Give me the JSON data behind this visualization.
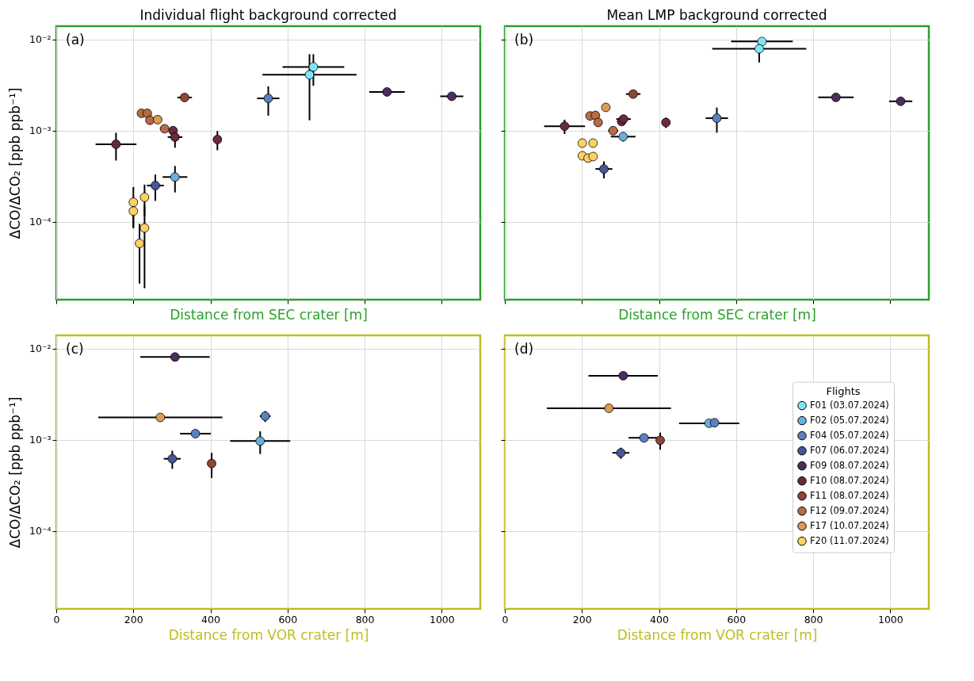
{
  "chart_data": [
    {
      "type": "scatter",
      "title": "Individual flight background corrected",
      "xlabel": "Distance from SEC crater [m]",
      "ylabel": "ΔCO/ΔCO₂ [ppb ppb⁻¹]",
      "annotations": [
        "(a)"
      ],
      "xlim": [
        0,
        1100
      ],
      "xticks": [
        0,
        200,
        400,
        600,
        800,
        1000
      ],
      "ylim": [
        1.4e-05,
        0.014
      ],
      "yticks": [
        {
          "value": 0.01,
          "label": "10⁻²"
        },
        {
          "value": 0.001,
          "label": "10⁻³"
        },
        {
          "value": 0.0001,
          "label": "10⁻⁴"
        }
      ],
      "log": "y",
      "grid": true,
      "marker": "circle",
      "tick_labels": "y",
      "series": [
        {
          "color": "#7fe6f8",
          "x": [
            667,
            657
          ],
          "values": [
            0.005,
            0.0041
          ],
          "errors": [
            0.0019,
            0.0028
          ],
          "xerrors": [
            80,
            122
          ]
        },
        {
          "color": "#6aaedc",
          "x": [
            308
          ],
          "values": [
            0.00031
          ],
          "errors": [
            0.0001
          ],
          "xerrors": [
            32
          ]
        },
        {
          "color": "#5b7fc0",
          "x": [
            550
          ],
          "values": [
            0.00226
          ],
          "errors": [
            0.0008
          ],
          "xerrors": [
            29
          ]
        },
        {
          "color": "#4a5596",
          "x": [
            257
          ],
          "values": [
            0.00025
          ],
          "errors": [
            8e-05
          ],
          "xerrors": [
            22
          ]
        },
        {
          "color": "#4b2e5e",
          "x": [
            858,
            1026
          ],
          "values": [
            0.00266,
            0.00238
          ],
          "xerrors": [
            46,
            30
          ]
        },
        {
          "color": "#6a2a3c",
          "x": [
            155,
            303,
            308,
            418
          ],
          "values": [
            0.00071,
            0.001,
            0.00085,
            0.0008
          ],
          "errors": [
            0.00024,
            null,
            0.0002,
            0.00019
          ],
          "xerrors": [
            53,
            null,
            19,
            null
          ]
        },
        {
          "color": "#8f4636",
          "x": [
            333
          ],
          "values": [
            0.00231
          ],
          "xerrors": [
            19
          ]
        },
        {
          "color": "#b86a45",
          "x": [
            221,
            236,
            243,
            281
          ],
          "values": [
            0.00155,
            0.00155,
            0.0013,
            0.00105
          ],
          "xerrors": [
            null,
            null,
            null,
            12
          ]
        },
        {
          "color": "#dc9a52",
          "x": [
            263
          ],
          "values": [
            0.00132
          ]
        },
        {
          "color": "#fdd063",
          "x": [
            200,
            200,
            229,
            229,
            216
          ],
          "values": [
            0.000164,
            0.000131,
            0.000186,
            8.57e-05,
            5.8e-05
          ],
          "errors": [
            7.7e-05,
            4.6e-05,
            7e-05,
            6.7e-05,
            3.7e-05
          ]
        }
      ]
    },
    {
      "type": "scatter",
      "title": "Mean LMP background corrected",
      "xlabel": "Distance from SEC crater [m]",
      "annotations": [
        "(b)"
      ],
      "xlim": [
        0,
        1100
      ],
      "xticks": [
        0,
        200,
        400,
        600,
        800,
        1000
      ],
      "ylim": [
        1.4e-05,
        0.014
      ],
      "yticks": [
        {
          "value": 0.01,
          "label": null
        },
        {
          "value": 0.001,
          "label": null
        },
        {
          "value": 0.0001,
          "label": null
        }
      ],
      "log": "y",
      "grid": true,
      "marker": "circle",
      "tick_labels": false,
      "series": [
        {
          "color": "#7fe6f8",
          "x": [
            667,
            660
          ],
          "values": [
            0.0095,
            0.0079
          ],
          "errors": [
            null,
            0.0023
          ],
          "xerrors": [
            80,
            122
          ]
        },
        {
          "color": "#6aaedc",
          "x": [
            307
          ],
          "values": [
            0.00086
          ],
          "errors": [
            0.0001
          ],
          "xerrors": [
            32
          ]
        },
        {
          "color": "#5b7fc0",
          "x": [
            550
          ],
          "values": [
            0.00137
          ],
          "errors": [
            0.00042
          ],
          "xerrors": [
            29
          ]
        },
        {
          "color": "#4a5596",
          "x": [
            257
          ],
          "values": [
            0.00038
          ],
          "errors": [
            8e-05
          ],
          "xerrors": [
            22
          ]
        },
        {
          "color": "#4b2e5e",
          "x": [
            859,
            1027
          ],
          "values": [
            0.00232,
            0.0021
          ],
          "xerrors": [
            46,
            30
          ]
        },
        {
          "color": "#6a2a3c",
          "x": [
            155,
            303,
            308,
            418
          ],
          "values": [
            0.00112,
            0.00126,
            0.00134,
            0.00123
          ],
          "errors": [
            0.0002,
            null,
            null,
            0.00016
          ],
          "xerrors": [
            53,
            null,
            19,
            null
          ]
        },
        {
          "color": "#8f4636",
          "x": [
            333
          ],
          "values": [
            0.00252
          ],
          "xerrors": [
            19
          ]
        },
        {
          "color": "#b86a45",
          "x": [
            221,
            235,
            242,
            281
          ],
          "values": [
            0.00145,
            0.00147,
            0.00123,
            0.001
          ],
          "xerrors": [
            null,
            null,
            null,
            13
          ]
        },
        {
          "color": "#dc9a52",
          "x": [
            262
          ],
          "values": [
            0.0018
          ]
        },
        {
          "color": "#fdd063",
          "x": [
            201,
            229,
            201,
            216,
            229
          ],
          "values": [
            0.00073,
            0.00073,
            0.00053,
            0.0005,
            0.00052
          ]
        }
      ]
    },
    {
      "type": "scatter",
      "xlabel": "Distance from VOR crater [m]",
      "ylabel": "ΔCO/ΔCO₂ [ppb ppb⁻¹]",
      "annotations": [
        "(c)"
      ],
      "xlim": [
        0,
        1100
      ],
      "xticks": [
        0,
        200,
        400,
        600,
        800,
        1000
      ],
      "ylim": [
        1.4e-05,
        0.014
      ],
      "yticks": [
        {
          "value": 0.01,
          "label": "10⁻²"
        },
        {
          "value": 0.001,
          "label": "10⁻³"
        },
        {
          "value": 0.0001,
          "label": "10⁻⁴"
        }
      ],
      "log": "y",
      "grid": true,
      "marker": "circle",
      "series": [
        {
          "color": "#6aaedc",
          "x": [
            529
          ],
          "values": [
            0.00097
          ],
          "errors": [
            0.00027
          ],
          "xerrors": [
            78
          ]
        },
        {
          "color": "#5b7fc0",
          "x": [
            361,
            542
          ],
          "values": [
            0.00117,
            0.00182
          ],
          "errors": [
            null,
            0.00025
          ],
          "xerrors": [
            40,
            14
          ]
        },
        {
          "color": "#4a5596",
          "x": [
            301
          ],
          "values": [
            0.00062
          ],
          "errors": [
            0.00014
          ],
          "xerrors": [
            22
          ]
        },
        {
          "color": "#4b2e5e",
          "x": [
            308
          ],
          "values": [
            0.0081
          ],
          "xerrors": [
            90
          ]
        },
        {
          "color": "#8f4636",
          "x": [
            403
          ],
          "values": [
            0.00055
          ],
          "errors": [
            0.00017
          ]
        },
        {
          "color": "#dc9a52",
          "x": [
            270
          ],
          "values": [
            0.00176
          ],
          "xerrors": [
            161
          ]
        }
      ]
    },
    {
      "type": "scatter",
      "xlabel": "Distance from VOR crater [m]",
      "annotations": [
        "(d)"
      ],
      "legend_title": "Flights",
      "legend": "right",
      "xlim": [
        0,
        1100
      ],
      "xticks": [
        0,
        200,
        400,
        600,
        800,
        1000
      ],
      "ylim": [
        1.4e-05,
        0.014
      ],
      "yticks": [
        {
          "value": 0.01,
          "label": null
        },
        {
          "value": 0.001,
          "label": null
        },
        {
          "value": 0.0001,
          "label": null
        }
      ],
      "log": "y",
      "grid": true,
      "marker": "circle",
      "tick_labels": "x",
      "series": [
        {
          "name": "F01 (03.07.2024)",
          "color": "#7fe6f8"
        },
        {
          "name": "F02 (05.07.2024)",
          "color": "#6aaedc",
          "x": [
            530
          ],
          "values": [
            0.00152
          ],
          "xerrors": [
            78
          ]
        },
        {
          "name": "F04 (05.07.2024)",
          "color": "#5b7fc0",
          "x": [
            544,
            361
          ],
          "values": [
            0.00154,
            0.00105
          ],
          "xerrors": [
            null,
            40
          ]
        },
        {
          "name": "F07 (06.07.2024)",
          "color": "#4a5596",
          "x": [
            301
          ],
          "values": [
            0.00072
          ],
          "errors": [
            0.0001
          ],
          "xerrors": [
            22
          ]
        },
        {
          "name": "F09 (08.07.2024)",
          "color": "#4b2e5e",
          "x": [
            307
          ],
          "values": [
            0.00505
          ],
          "xerrors": [
            90
          ]
        },
        {
          "name": "F10 (08.07.2024)",
          "color": "#6a2a3c"
        },
        {
          "name": "F11 (08.07.2024)",
          "color": "#8f4636",
          "x": [
            403
          ],
          "values": [
            0.00099
          ],
          "errors": [
            0.00021
          ]
        },
        {
          "name": "F12 (09.07.2024)",
          "color": "#b86a45"
        },
        {
          "name": "F17 (10.07.2024)",
          "color": "#dc9a52",
          "x": [
            270
          ],
          "values": [
            0.00222
          ],
          "xerrors": [
            161
          ]
        },
        {
          "name": "F20 (11.07.2024)",
          "color": "#fdd063"
        }
      ]
    }
  ]
}
